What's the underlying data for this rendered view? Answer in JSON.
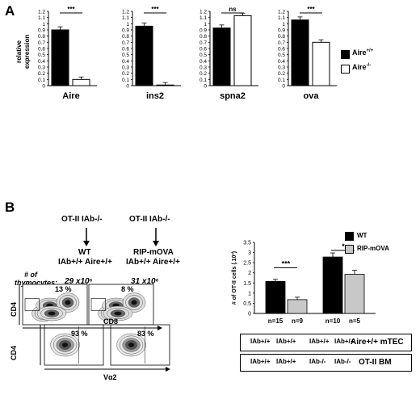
{
  "panel_a": {
    "letter": "A"
  },
  "panel_b": {
    "letter": "B"
  },
  "chart_data": [
    {
      "type": "bar",
      "title": "",
      "xlabel": "Aire",
      "ylabel": "relative expression",
      "ylim": [
        0,
        1.2
      ],
      "yticks": [
        "0",
        "0.1",
        "0.2",
        "0.3",
        "0.4",
        "0.5",
        "0.6",
        "0.7",
        "0.8",
        "0.9",
        "1",
        "1.1",
        "1.2"
      ],
      "series": [
        {
          "name": "Aire+/+",
          "values": [
            0.9
          ]
        },
        {
          "name": "Aire-/-",
          "values": [
            0.1
          ]
        }
      ],
      "significance": "***"
    },
    {
      "type": "bar",
      "xlabel": "ins2",
      "ylim": [
        0,
        1.2
      ],
      "yticks": [
        "0",
        "0.1",
        "0.2",
        "0.3",
        "0.4",
        "0.5",
        "0.6",
        "0.7",
        "0.8",
        "0.9",
        "1",
        "1.1",
        "1.2"
      ],
      "series": [
        {
          "name": "Aire+/+",
          "values": [
            0.96
          ]
        },
        {
          "name": "Aire-/-",
          "values": [
            0.01
          ]
        }
      ],
      "significance": "***"
    },
    {
      "type": "bar",
      "xlabel": "spna2",
      "ylim": [
        0,
        1.2
      ],
      "yticks": [
        "0",
        "0.1",
        "0.2",
        "0.3",
        "0.4",
        "0.5",
        "0.6",
        "0.7",
        "0.8",
        "0.9",
        "1",
        "1.1",
        "1.2"
      ],
      "series": [
        {
          "name": "Aire+/+",
          "values": [
            0.93
          ]
        },
        {
          "name": "Aire-/-",
          "values": [
            1.13
          ]
        }
      ],
      "significance": "ns"
    },
    {
      "type": "bar",
      "xlabel": "ova",
      "ylim": [
        0,
        1.2
      ],
      "yticks": [
        "0",
        "0.1",
        "0.2",
        "0.3",
        "0.4",
        "0.5",
        "0.6",
        "0.7",
        "0.8",
        "0.9",
        "1",
        "1.1",
        "1.2"
      ],
      "series": [
        {
          "name": "Aire+/+",
          "values": [
            1.06
          ]
        },
        {
          "name": "Aire-/-",
          "values": [
            0.7
          ]
        }
      ],
      "significance": "***"
    },
    {
      "type": "bar",
      "ylabel": "# of OT-II cells (.10³)",
      "ylim": [
        0,
        3.5
      ],
      "yticks": [
        "0",
        "0.5",
        "1",
        "1.5",
        "2",
        "2.5",
        "3",
        "3.5"
      ],
      "categories": [
        "IAb+/+",
        "IAb-/-"
      ],
      "series": [
        {
          "name": "WT",
          "values": [
            1.58,
            2.78
          ]
        },
        {
          "name": "RIP-mOVA",
          "values": [
            0.68,
            1.93
          ]
        }
      ],
      "n_labels": [
        "n=15",
        "n=9",
        "n=10",
        "n=5"
      ],
      "significance": [
        "***",
        "*"
      ]
    }
  ],
  "legend_a": [
    {
      "sup": "+/+",
      "base": "Aire",
      "color": "#000000"
    },
    {
      "sup": "-/-",
      "base": "Aire",
      "color": "#ffffff"
    }
  ],
  "legend_b": [
    {
      "label": "WT",
      "color": "#000000"
    },
    {
      "label": "RIP-mOVA",
      "color": "#c8c8c8"
    }
  ],
  "scheme": {
    "left_top": "OT-II IAb-/-",
    "left_bottom_1": "WT",
    "left_bottom_2": "IAb+/+ Aire+/+",
    "right_top": "OT-II IAb-/-",
    "right_bottom_1": "RIP-mOVA",
    "right_bottom_2": "IAb+/+ Aire+/+"
  },
  "flow": {
    "thymocyte_label_1": "# of",
    "thymocyte_label_2": "thymocytes:",
    "count_left": "29 x10⁶",
    "count_right": "31 x10⁶",
    "pct_top_left": "13 %",
    "pct_top_right": "8 %",
    "pct_bottom_left": "93 %",
    "pct_bottom_right": "83 %",
    "axis_cd4_top": "CD4",
    "axis_cd8": "CD8",
    "axis_cd4_bottom": "CD4",
    "axis_va2": "Vα2"
  },
  "table": {
    "row1_right": "Aire+/+ mTEC",
    "row2_right": "OT-II BM",
    "row1_cells": [
      "IAb+/+",
      "IAb+/+",
      "IAb+/+",
      "IAb+/+"
    ],
    "row2_cells": [
      "IAb+/+",
      "IAb+/+",
      "IAb-/-",
      "IAb-/-"
    ]
  }
}
